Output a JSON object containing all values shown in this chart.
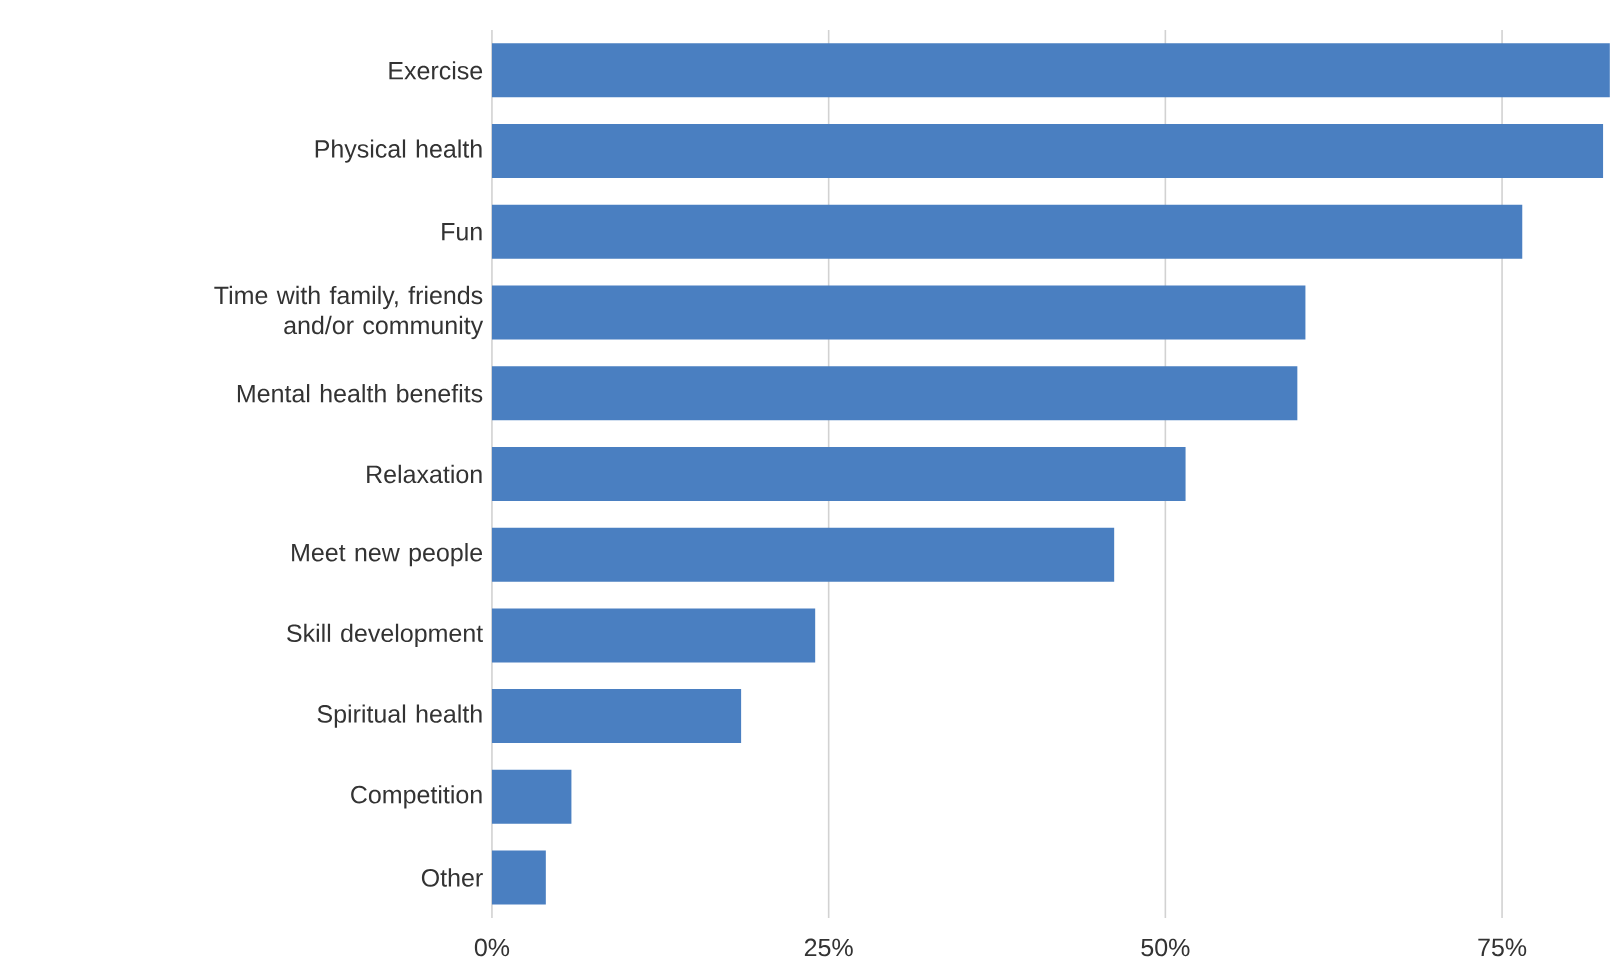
{
  "chart_data": {
    "type": "bar",
    "orientation": "horizontal",
    "categories": [
      "Exercise",
      "Physical health",
      "Fun",
      "Time with family, friends and/or community",
      "Mental health benefits",
      "Relaxation",
      "Meet new people",
      "Skill development",
      "Spiritual health",
      "Competition",
      "Other"
    ],
    "values": [
      83,
      82.5,
      76.5,
      60.4,
      59.8,
      51.5,
      46.2,
      24.0,
      18.5,
      5.9,
      4.0
    ],
    "color": "#4a7fc1",
    "xlim": [
      0,
      83
    ],
    "xticks": [
      {
        "value": 0,
        "label": "0%"
      },
      {
        "value": 25,
        "label": "25%"
      },
      {
        "value": 50,
        "label": "50%"
      },
      {
        "value": 75,
        "label": "75%"
      }
    ],
    "grid": "x"
  }
}
